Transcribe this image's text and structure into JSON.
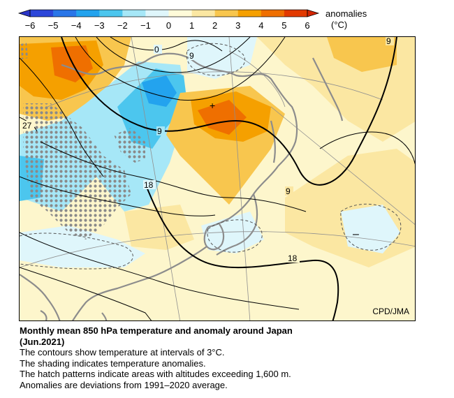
{
  "colorbar": {
    "title": "anomalies",
    "unit": "(°C)",
    "ticks": [
      "−6",
      "−5",
      "−4",
      "−3",
      "−2",
      "−1",
      "0",
      "1",
      "2",
      "3",
      "4",
      "5",
      "6"
    ],
    "colors": [
      "#2c46d9",
      "#2a76e8",
      "#23a3ee",
      "#4cc6ee",
      "#a6e7f7",
      "#dff6fb",
      "#fffbd9",
      "#fbe7a2",
      "#f8c64e",
      "#f5a000",
      "#ef6f00",
      "#e23a00"
    ]
  },
  "map": {
    "contour_labels": [
      "0",
      "9",
      "9",
      "27",
      "9",
      "18",
      "9",
      "18"
    ],
    "minus_marker": "–",
    "plus_marker": "+",
    "credit": "CPD/JMA",
    "contour_interval_c": 3,
    "hatch_altitude_m": 1600
  },
  "caption": {
    "title_line1": "Monthly mean 850 hPa temperature and anomaly around Japan",
    "title_line2": "(Jun.2021)",
    "line1": "The contours show temperature at intervals of 3°C.",
    "line2": "The shading indicates temperature anomalies.",
    "line3": "The hatch patterns indicate areas with altitudes exceeding 1,600 m.",
    "line4": "Anomalies are deviations from 1991–2020 average."
  }
}
